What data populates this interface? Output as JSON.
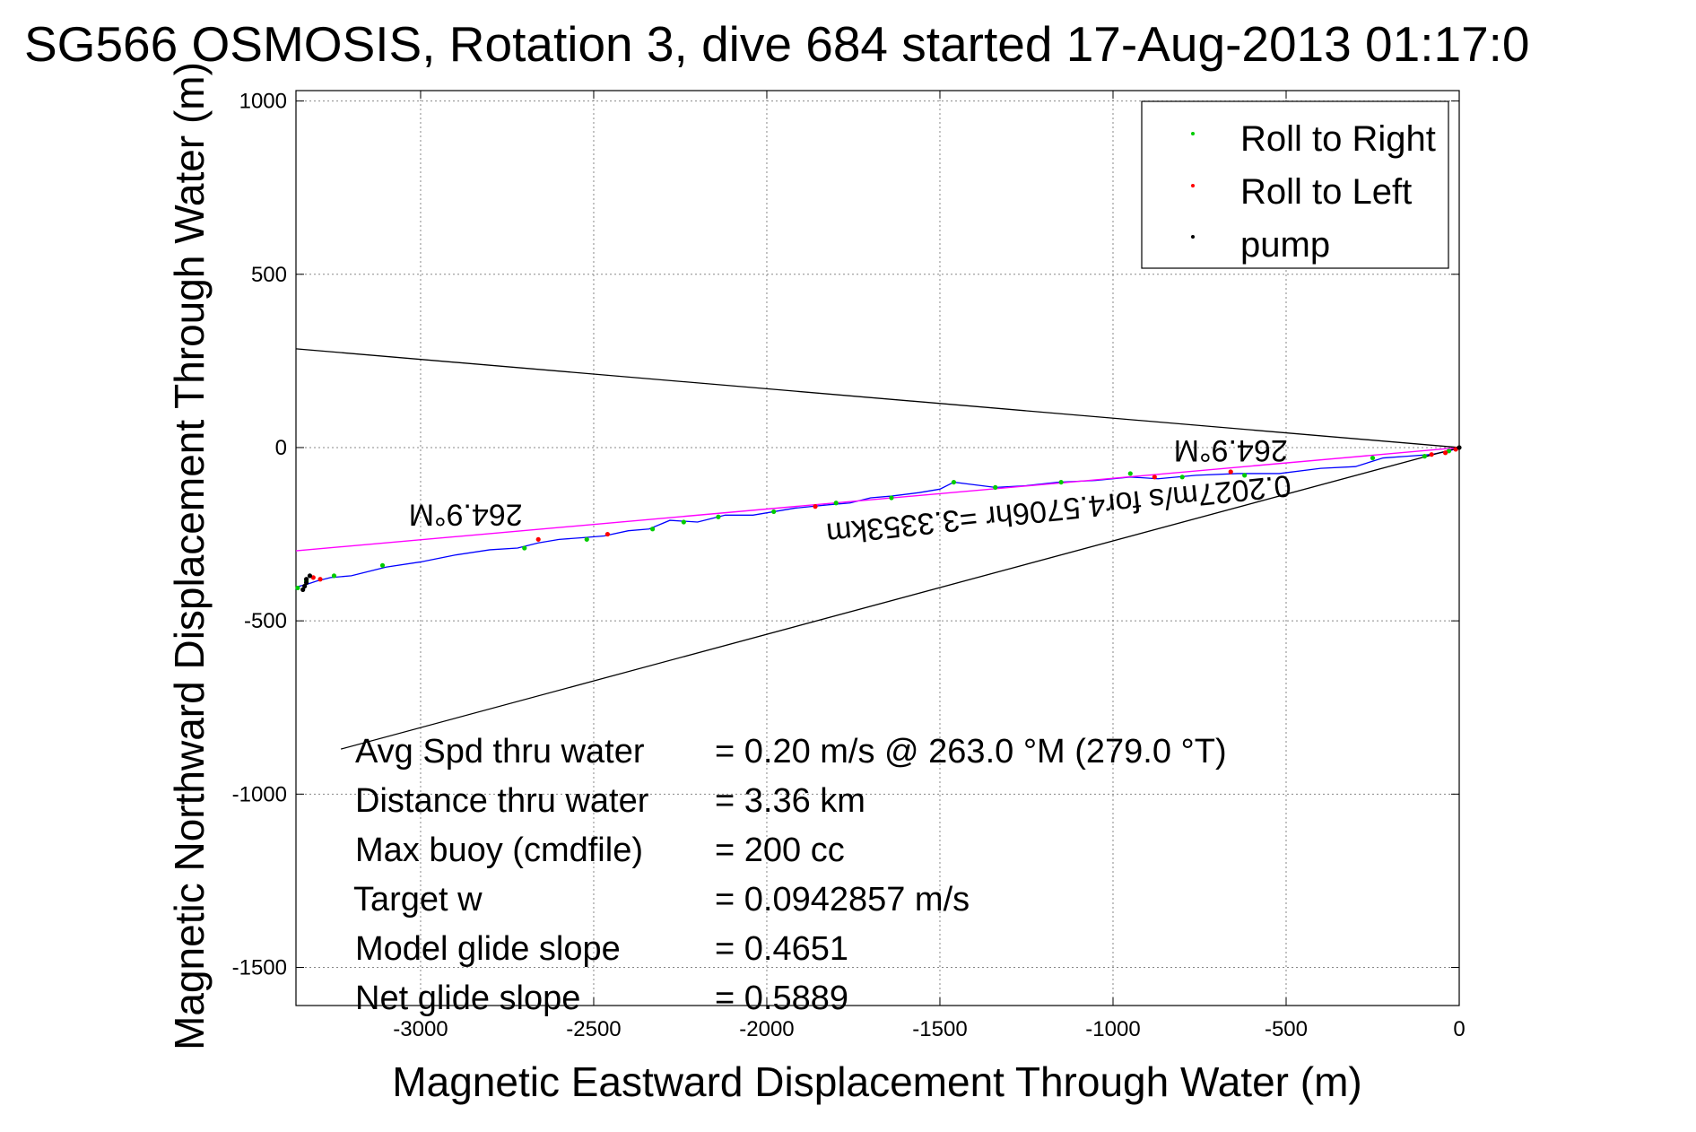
{
  "chart_data": {
    "type": "line",
    "title": "SG566 OSMOSIS, Rotation 3, dive 684 started 17-Aug-2013 01:17:0",
    "xlabel": "Magnetic Eastward Displacement Through Water (m)",
    "ylabel": "Magnetic Northward Displacement Through Water (m)",
    "xlim": [
      -3360,
      0
    ],
    "ylim": [
      -1610,
      1030
    ],
    "xticks": [
      -3000,
      -2500,
      -2000,
      -1500,
      -1000,
      -500,
      0
    ],
    "yticks": [
      1000,
      500,
      0,
      -500,
      -1000,
      -1500
    ],
    "grid": true,
    "legend_position": "top-right",
    "legend": [
      {
        "label": "Roll to Right",
        "color": "#00cc00"
      },
      {
        "label": "Roll to Left",
        "color": "#ff0000"
      },
      {
        "label": "pump",
        "color": "#000000"
      }
    ],
    "series": [
      {
        "color": "#0000ff",
        "x": [
          0,
          -30,
          -80,
          -150,
          -220,
          -300,
          -400,
          -520,
          -640,
          -760,
          -870,
          -950,
          -1050,
          -1160,
          -1250,
          -1340,
          -1420,
          -1460,
          -1500,
          -1560,
          -1640,
          -1700,
          -1760,
          -1820,
          -1870,
          -1920,
          -1980,
          -2040,
          -2120,
          -2200,
          -2280,
          -2340,
          -2400,
          -2470,
          -2530,
          -2600,
          -2660,
          -2720,
          -2800,
          -2900,
          -3000,
          -3100,
          -3200,
          -3260,
          -3300,
          -3330,
          -3350,
          -3360
        ],
        "y": [
          0,
          -10,
          -20,
          -25,
          -30,
          -55,
          -60,
          -75,
          -75,
          -80,
          -90,
          -85,
          -95,
          -100,
          -110,
          -115,
          -105,
          -100,
          -120,
          -130,
          -140,
          -145,
          -160,
          -165,
          -170,
          -175,
          -185,
          -195,
          -195,
          -215,
          -210,
          -235,
          -240,
          -255,
          -260,
          -265,
          -275,
          -290,
          -295,
          -310,
          -330,
          -345,
          -370,
          -375,
          -385,
          -395,
          -400,
          -410
        ]
      },
      {
        "color": "#ff00ff",
        "x": [
          0,
          -3360
        ],
        "y": [
          0,
          -298
        ]
      }
    ],
    "points": {
      "roll_right": {
        "color": "#00cc00",
        "x": [
          -30,
          -100,
          -250,
          -620,
          -800,
          -950,
          -1150,
          -1340,
          -1460,
          -1640,
          -1800,
          -1980,
          -2140,
          -2240,
          -2330,
          -2520,
          -2700,
          -3110,
          -3250,
          -3330,
          -3355
        ],
        "y": [
          -10,
          -25,
          -30,
          -80,
          -85,
          -75,
          -100,
          -115,
          -100,
          -145,
          -160,
          -185,
          -200,
          -215,
          -235,
          -265,
          -290,
          -340,
          -370,
          -385,
          -405
        ]
      },
      "roll_left": {
        "color": "#ff0000",
        "x": [
          -10,
          -40,
          -80,
          -660,
          -880,
          -1860,
          -2460,
          -2660,
          -3290,
          -3310
        ],
        "y": [
          -5,
          -15,
          -20,
          -70,
          -85,
          -170,
          -250,
          -265,
          -380,
          -375
        ]
      },
      "pump": {
        "color": "#000000",
        "x": [
          0,
          -3320,
          -3330,
          -3330,
          -3335,
          -3340
        ],
        "y": [
          0,
          -370,
          -380,
          -390,
          -400,
          -410
        ]
      }
    },
    "reference_lines": [
      {
        "color": "#000000",
        "x": [
          0,
          -3360
        ],
        "y": [
          0,
          285
        ]
      },
      {
        "color": "#000000",
        "x": [
          0,
          -3230
        ],
        "y": [
          0,
          -870
        ]
      }
    ],
    "annotations": [
      {
        "text": "264.9°M",
        "x": -2870,
        "y": -165,
        "rotation": 180
      },
      {
        "text": "264.9°M",
        "x": -660,
        "y": 20,
        "rotation": 180
      },
      {
        "text": "0.2027m/s for4.5706hr =3.3353km",
        "x": -1160,
        "y": -150,
        "rotation": 174
      }
    ],
    "summary": [
      {
        "label": "Avg Spd thru water",
        "value": "=  0.20 m/s @ 263.0 °M (279.0 °T)"
      },
      {
        "label": "Distance thru water",
        "value": "=  3.36 km"
      },
      {
        "label": "Max buoy (cmdfile)",
        "value": "= 200 cc"
      },
      {
        "label": "Target w",
        "value": "= 0.0942857 m/s"
      },
      {
        "label": "Model glide slope",
        "value": "= 0.4651"
      },
      {
        "label": "Net glide slope",
        "value": "= 0.5889"
      }
    ]
  }
}
